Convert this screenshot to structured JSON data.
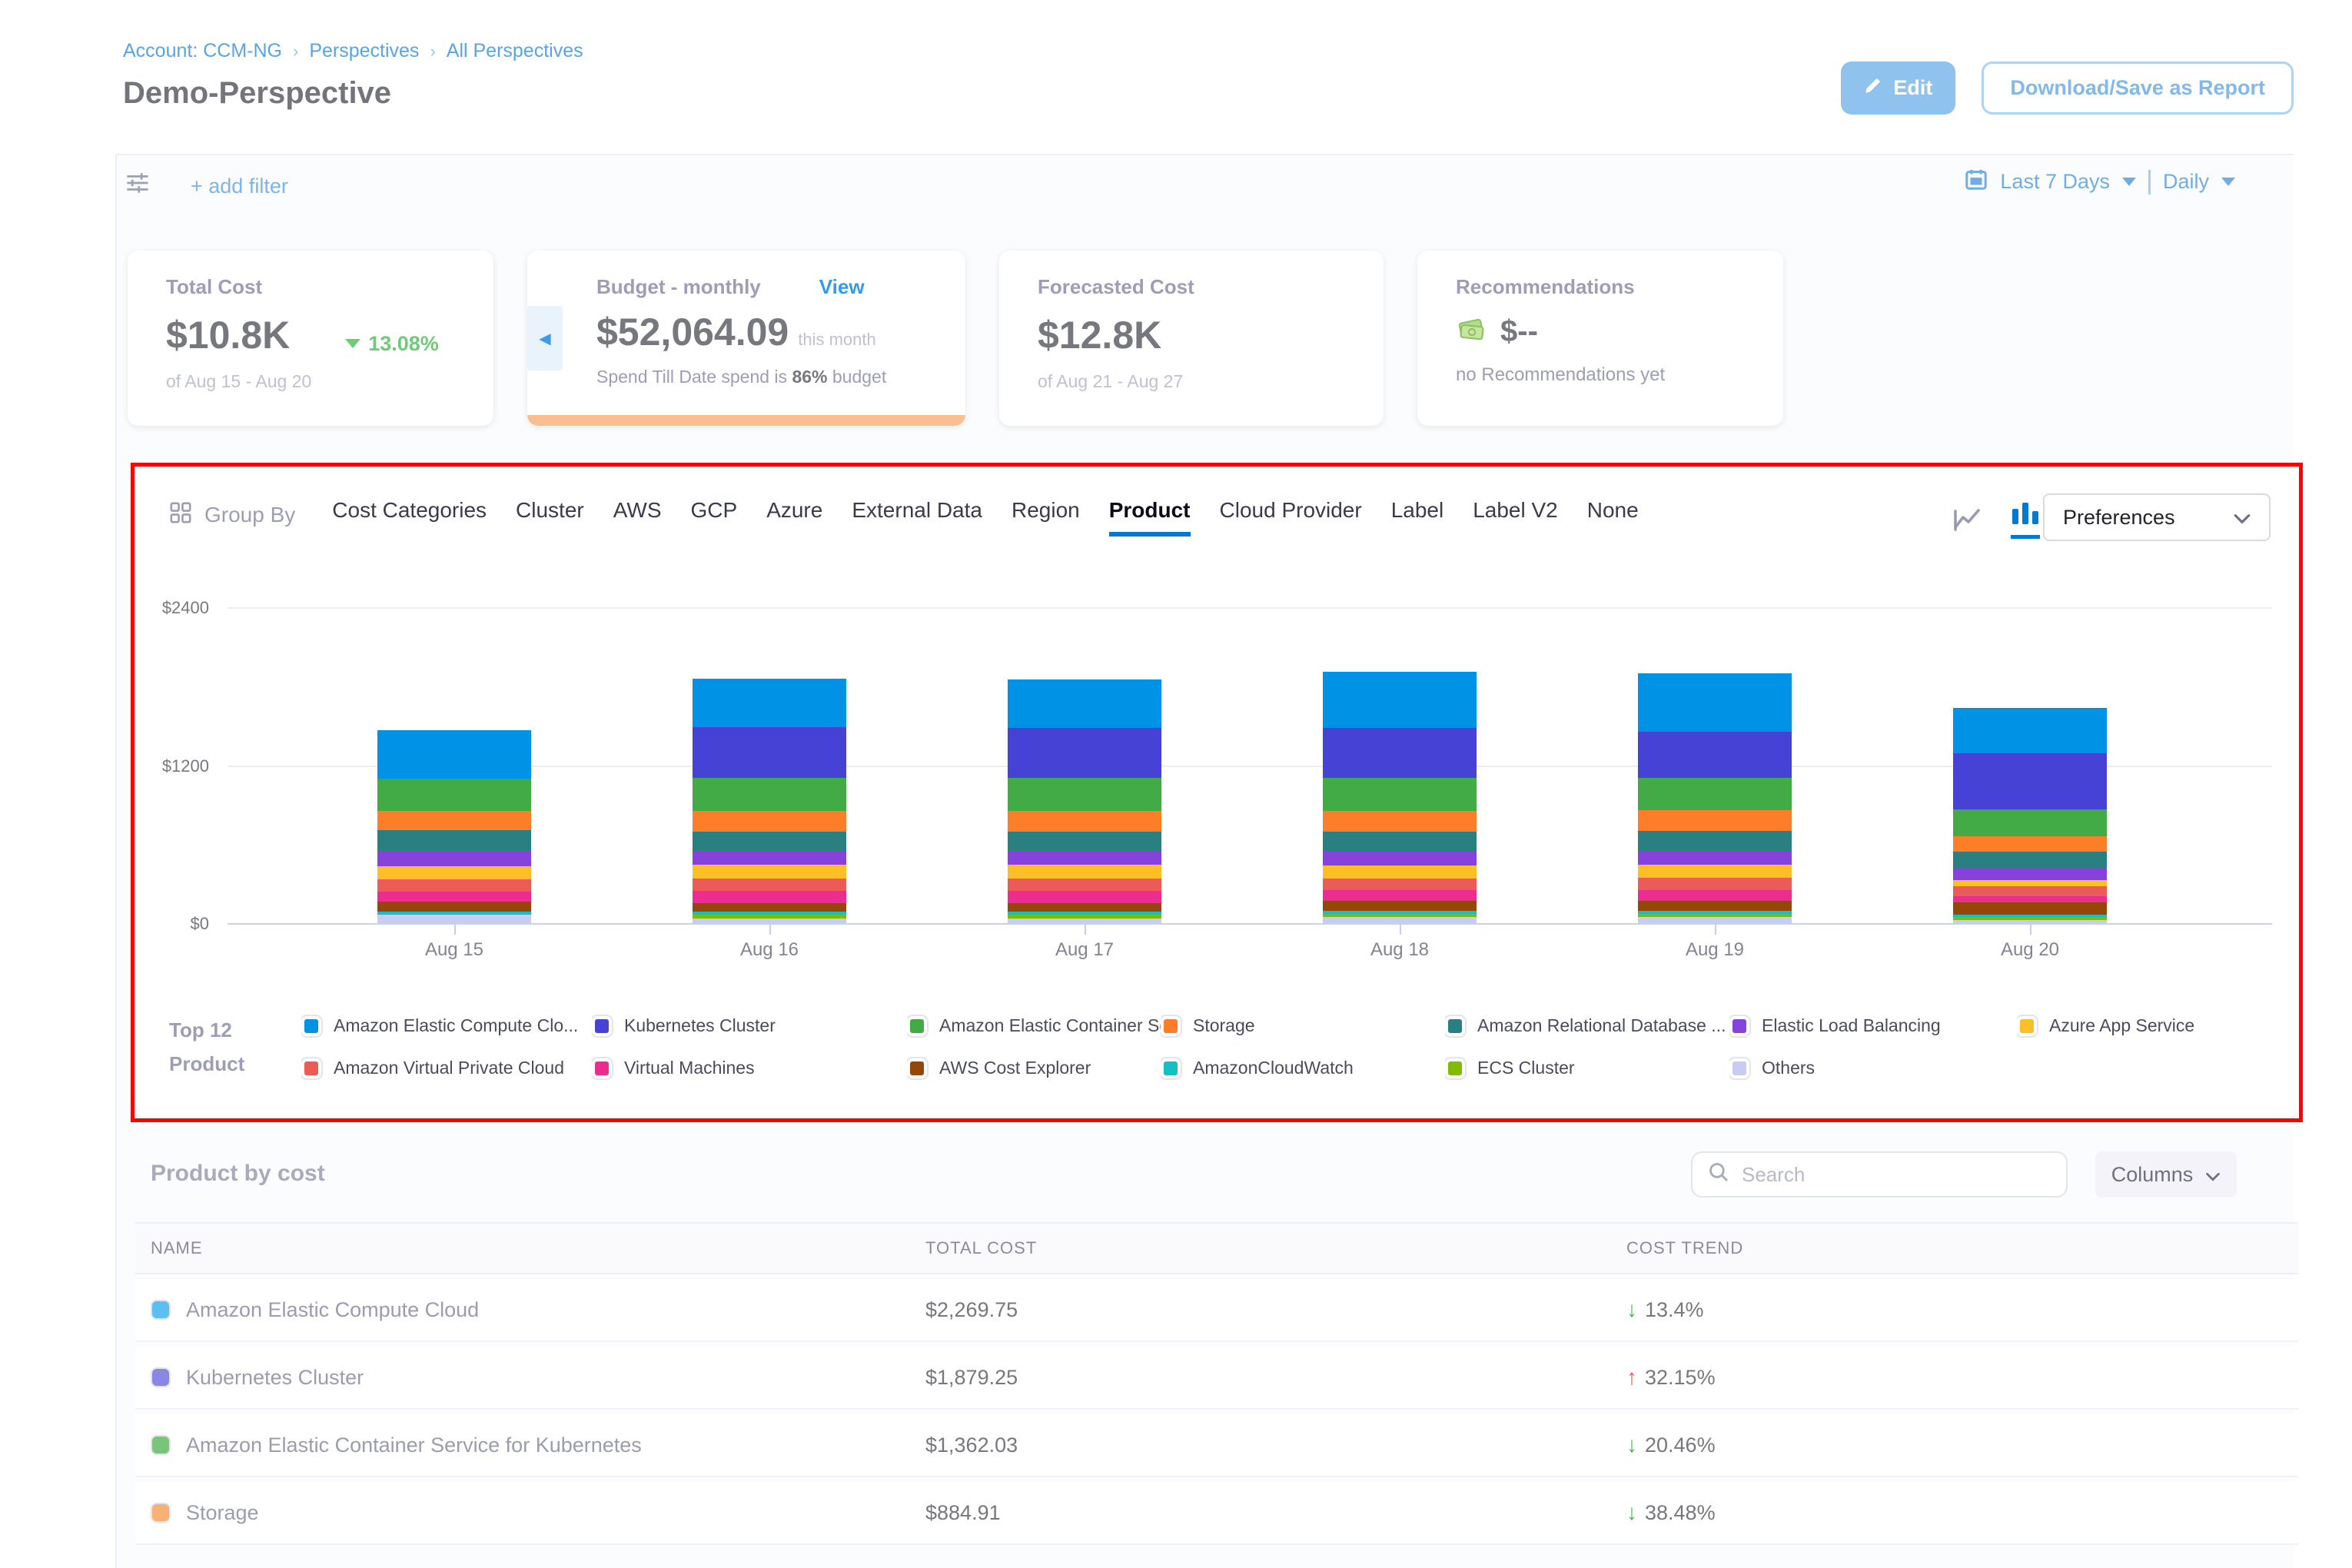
{
  "breadcrumb": {
    "account": "Account: CCM-NG",
    "perspectives": "Perspectives",
    "all_perspectives": "All Perspectives"
  },
  "page_title": "Demo-Perspective",
  "header_actions": {
    "edit": "Edit",
    "download": "Download/Save as Report"
  },
  "filter_bar": {
    "add_filter": "+ add filter",
    "date_range": "Last 7 Days",
    "granularity": "Daily"
  },
  "summary_cards": {
    "total_cost": {
      "label": "Total Cost",
      "value": "$10.8K",
      "trend_pct": "13.08%",
      "trend_direction": "down",
      "period": "of Aug 15 - Aug 20"
    },
    "budget": {
      "label": "Budget - monthly",
      "view": "View",
      "value": "$52,064.09",
      "suffix": "this month",
      "note_prefix": "Spend Till Date spend is",
      "note_pct": "86%",
      "note_suffix": "budget",
      "progress_color": "#F9BE92"
    },
    "forecasted": {
      "label": "Forecasted Cost",
      "value": "$12.8K",
      "period": "of Aug 21 - Aug 27"
    },
    "recommendations": {
      "label": "Recommendations",
      "value": "$--",
      "note": "no Recommendations yet"
    }
  },
  "group_by": {
    "label": "Group By",
    "tabs": [
      "Cost Categories",
      "Cluster",
      "AWS",
      "GCP",
      "Azure",
      "External Data",
      "Region",
      "Product",
      "Cloud Provider",
      "Label",
      "Label V2",
      "None"
    ],
    "active": "Product",
    "preferences": "Preferences",
    "accent_color": "#0278D5"
  },
  "chart_data": {
    "type": "bar",
    "stacked": true,
    "categories": [
      "Aug 15",
      "Aug 16",
      "Aug 17",
      "Aug 18",
      "Aug 19",
      "Aug 20"
    ],
    "ylim": [
      0,
      2400
    ],
    "yticks": [
      {
        "label": "$0",
        "value": 0
      },
      {
        "label": "$1200",
        "value": 1200
      },
      {
        "label": "$2400",
        "value": 2400
      }
    ],
    "grid": true,
    "legend_position": "bottom",
    "series": [
      {
        "name": "Others",
        "color": "#C8CBF2",
        "values": [
          64,
          35,
          35,
          47,
          47,
          23
        ]
      },
      {
        "name": "ECS Cluster",
        "color": "#82BA08",
        "values": [
          0,
          29,
          29,
          23,
          23,
          24
        ]
      },
      {
        "name": "AmazonCloudWatch",
        "color": "#16BEC5",
        "values": [
          24,
          24,
          24,
          23,
          23,
          17
        ]
      },
      {
        "name": "AWS Cost Explorer",
        "color": "#954708",
        "values": [
          75,
          64,
          64,
          76,
          76,
          94
        ]
      },
      {
        "name": "Virtual Machines",
        "color": "#ED2C90",
        "values": [
          76,
          93,
          93,
          82,
          82,
          46
        ]
      },
      {
        "name": "Amazon Virtual Private Cloud",
        "color": "#EA5C55",
        "values": [
          94,
          94,
          94,
          88,
          94,
          76
        ]
      },
      {
        "name": "Azure App Service",
        "color": "#FCC026",
        "values": [
          99,
          105,
          105,
          99,
          99,
          47
        ]
      },
      {
        "name": "Elastic Load Balancing",
        "color": "#8642DA",
        "values": [
          117,
          105,
          105,
          105,
          105,
          93
        ]
      },
      {
        "name": "Amazon Relational Database Service",
        "color": "#2A8080",
        "values": [
          158,
          146,
          146,
          152,
          152,
          123
        ]
      },
      {
        "name": "Storage",
        "color": "#FD7E28",
        "values": [
          146,
          158,
          158,
          158,
          158,
          117
        ]
      },
      {
        "name": "Amazon Elastic Container Service for Kubernetes",
        "color": "#42AB45",
        "values": [
          245,
          251,
          251,
          251,
          245,
          204
        ]
      },
      {
        "name": "Kubernetes Cluster",
        "color": "#4642D6",
        "values": [
          0,
          385,
          380,
          379,
          350,
          426
        ]
      },
      {
        "name": "Amazon Elastic Compute Cloud",
        "color": "#0092E4",
        "values": [
          368,
          368,
          365,
          426,
          442,
          345
        ]
      }
    ]
  },
  "legend": {
    "title_line1": "Top 12",
    "title_line2": "Product",
    "items": [
      {
        "label": "Amazon Elastic Compute Clo...",
        "color": "#0092E4"
      },
      {
        "label": "Kubernetes Cluster",
        "color": "#4642D6"
      },
      {
        "label": "Amazon Elastic Container Se...",
        "color": "#42AB45"
      },
      {
        "label": "Storage",
        "color": "#FD7E28"
      },
      {
        "label": "Amazon Relational Database ...",
        "color": "#2A8080"
      },
      {
        "label": "Elastic Load Balancing",
        "color": "#8642DA"
      },
      {
        "label": "Azure App Service",
        "color": "#FCC026"
      },
      {
        "label": "Amazon Virtual Private Cloud",
        "color": "#EA5C55"
      },
      {
        "label": "Virtual Machines",
        "color": "#ED2C90"
      },
      {
        "label": "AWS Cost Explorer",
        "color": "#954708"
      },
      {
        "label": "AmazonCloudWatch",
        "color": "#16BEC5"
      },
      {
        "label": "ECS Cluster",
        "color": "#82BA08"
      },
      {
        "label": "Others",
        "color": "#C8CBF2"
      }
    ]
  },
  "table": {
    "title": "Product by cost",
    "search_placeholder": "Search",
    "columns_button": "Columns",
    "headers": [
      "NAME",
      "TOTAL COST",
      "COST TREND"
    ],
    "rows": [
      {
        "name": "Amazon Elastic Compute Cloud",
        "swatch": "#5BC0EF",
        "cost": "$2,269.75",
        "trend": "13.4%",
        "direction": "down"
      },
      {
        "name": "Kubernetes Cluster",
        "swatch": "#8987E5",
        "cost": "$1,879.25",
        "trend": "32.15%",
        "direction": "up"
      },
      {
        "name": "Amazon Elastic Container Service for Kubernetes",
        "swatch": "#77C578",
        "cost": "$1,362.03",
        "trend": "20.46%",
        "direction": "down"
      },
      {
        "name": "Storage",
        "swatch": "#F9B173",
        "cost": "$884.91",
        "trend": "38.48%",
        "direction": "down"
      }
    ]
  }
}
